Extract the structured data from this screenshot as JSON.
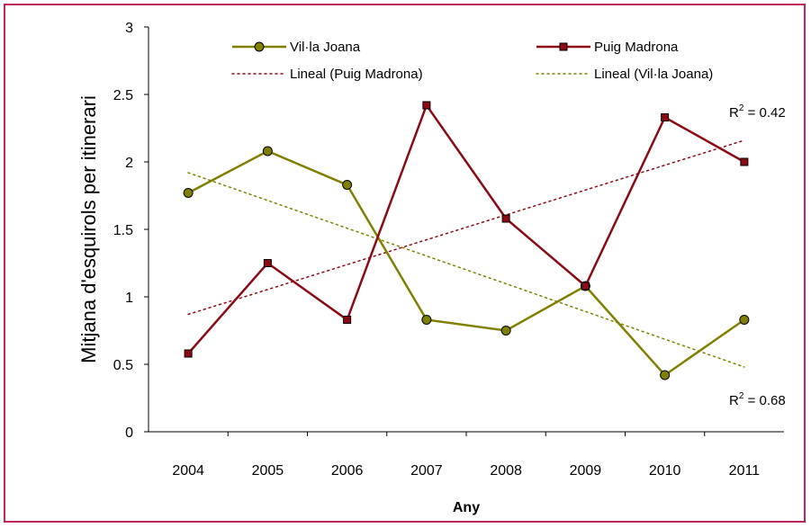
{
  "chart_data": {
    "type": "line",
    "categories": [
      "2004",
      "2005",
      "2006",
      "2007",
      "2008",
      "2009",
      "2010",
      "2011"
    ],
    "xlabel": "Any",
    "ylabel": "Mitjana d'esquirols per itinerari",
    "ylim": [
      0,
      3
    ],
    "yticks": [
      "0",
      "0.5",
      "1",
      "1.5",
      "2",
      "2.5",
      "3"
    ],
    "grid": false,
    "legend_position": "top",
    "series": [
      {
        "name": "Vil·la Joana",
        "color": "#808000",
        "marker": "circle",
        "values": [
          1.77,
          2.08,
          1.83,
          0.83,
          0.75,
          1.08,
          0.42,
          0.83
        ]
      },
      {
        "name": "Puig Madrona",
        "color": "#8b0a14",
        "marker": "square",
        "values": [
          0.58,
          1.25,
          0.83,
          2.42,
          1.58,
          1.08,
          2.33,
          2.0
        ]
      }
    ],
    "trendlines": [
      {
        "name": "Lineal (Puig Madrona)",
        "color": "#8b0a14",
        "start": 0.87,
        "end": 2.16
      },
      {
        "name": "Lineal (Vil·la Joana)",
        "color": "#808000",
        "start": 1.92,
        "end": 0.48
      }
    ],
    "annotations": [
      {
        "text_main": "R",
        "text_sup": "2",
        "text_rest": " = 0.42",
        "value": 0.42
      },
      {
        "text_main": "R",
        "text_sup": "2",
        "text_rest": " = 0.68",
        "value": 0.68
      }
    ]
  }
}
